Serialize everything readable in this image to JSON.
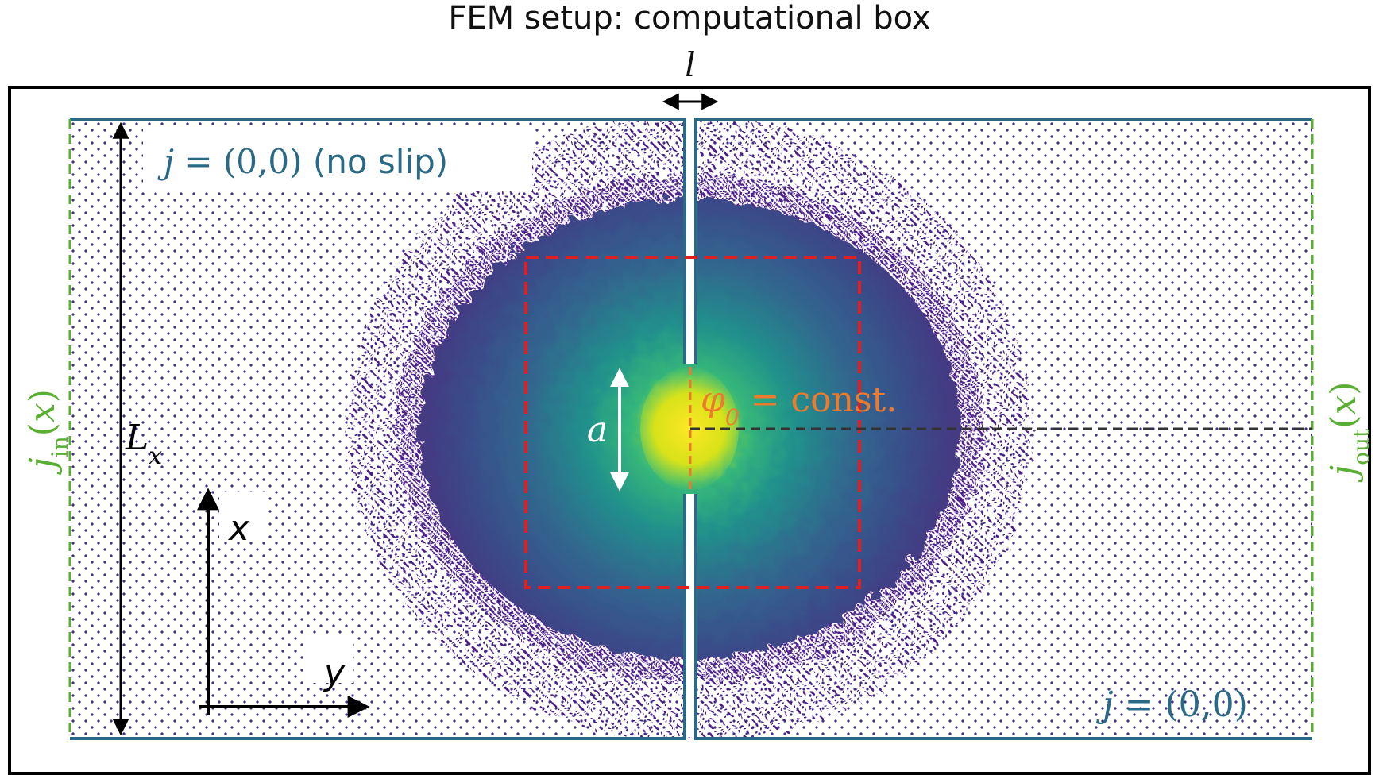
{
  "title": "FEM setup: computational box",
  "labels": {
    "slit_width": "l",
    "boundary_top": "j = (0,0) (no slip)",
    "boundary_bottom": "j = (0,0)",
    "inflow": "j_in(x)",
    "outflow": "j_out(x)",
    "box_length": "L_x",
    "aperture": "a",
    "potential": "φ_0 = const.",
    "axis_x": "x",
    "axis_y": "y"
  },
  "colors": {
    "frame": "#000000",
    "wall": "#2a6a86",
    "open_boundary": "#5aae33",
    "control_box": "#e02020",
    "potential_label": "#ee7b2c",
    "mesh_low": "#3b0f70",
    "field_mid": "#21908c",
    "field_high": "#fde725",
    "symmetry_line": "#333333"
  }
}
